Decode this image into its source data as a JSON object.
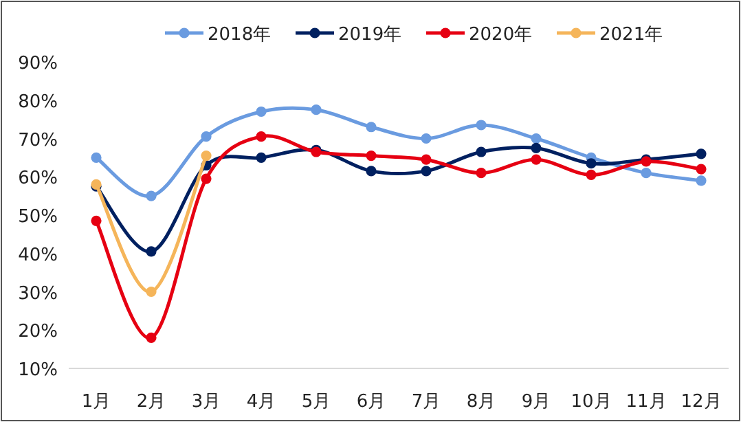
{
  "chart_data": {
    "type": "line",
    "categories": [
      "1月",
      "2月",
      "3月",
      "4月",
      "5月",
      "6月",
      "7月",
      "8月",
      "9月",
      "10月",
      "11月",
      "12月"
    ],
    "series": [
      {
        "name": "2018年",
        "color": "#6a9be0",
        "values": [
          65,
          55,
          70.5,
          77,
          77.5,
          73,
          70,
          73.5,
          70,
          65,
          61,
          59
        ]
      },
      {
        "name": "2019年",
        "color": "#002060",
        "values": [
          57.5,
          40.5,
          63,
          65,
          67,
          61.5,
          61.5,
          66.5,
          67.5,
          63.5,
          64.5,
          66
        ]
      },
      {
        "name": "2020年",
        "color": "#e60012",
        "values": [
          48.5,
          18,
          59.5,
          70.5,
          66.5,
          65.5,
          64.5,
          61,
          64.5,
          60.5,
          64,
          62
        ]
      },
      {
        "name": "2021年",
        "color": "#f5b55a",
        "values": [
          58,
          30,
          65.5,
          null,
          null,
          null,
          null,
          null,
          null,
          null,
          null,
          null
        ]
      }
    ],
    "ylim": [
      10,
      90
    ],
    "yticks": [
      {
        "value": 10,
        "label": "10%"
      },
      {
        "value": 20,
        "label": "20%"
      },
      {
        "value": 30,
        "label": "30%"
      },
      {
        "value": 40,
        "label": "40%"
      },
      {
        "value": 50,
        "label": "50%"
      },
      {
        "value": 60,
        "label": "60%"
      },
      {
        "value": 70,
        "label": "70%"
      },
      {
        "value": 80,
        "label": "80%"
      },
      {
        "value": 90,
        "label": "90%"
      }
    ],
    "grid": false,
    "legend": "top",
    "marker": "circle",
    "line_style": "solid"
  }
}
